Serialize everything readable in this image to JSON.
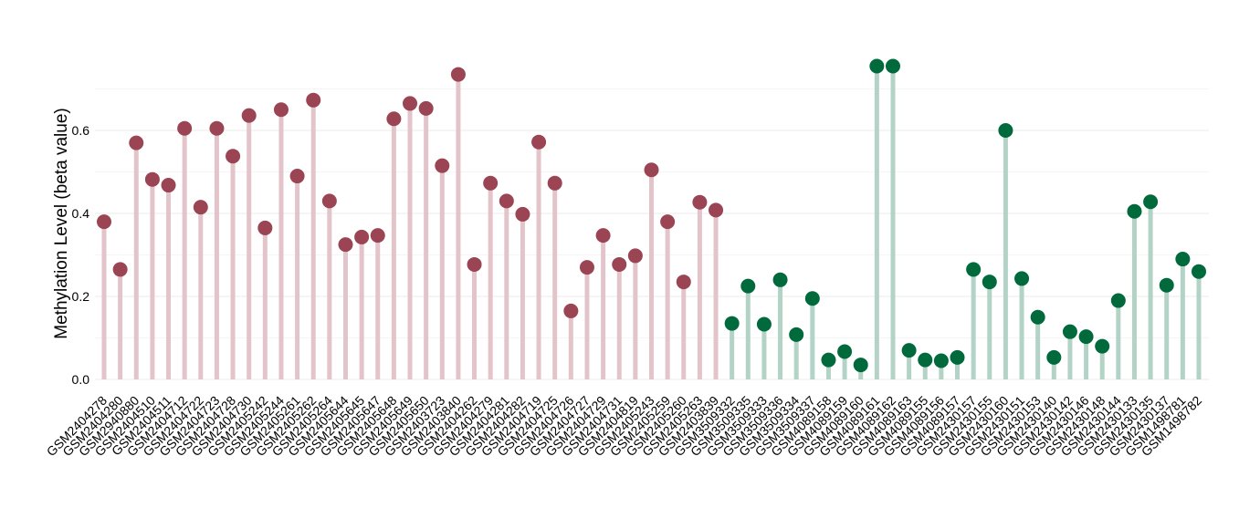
{
  "chart_data": {
    "type": "lollipop",
    "ylabel": "Methylation Level (beta value)",
    "ylim": [
      0,
      0.8
    ],
    "yticks": [
      "0.0",
      "0.2",
      "0.4",
      "0.6"
    ],
    "grid": true,
    "colors": {
      "group1_dot": "#9B4453",
      "group1_stem": "#E2C4CA",
      "group2_dot": "#006A3C",
      "group2_stem": "#B2D3C6"
    },
    "points": [
      {
        "label": "GSM2404278",
        "value": 0.38,
        "group": 1
      },
      {
        "label": "GSM2404280",
        "value": 0.265,
        "group": 1
      },
      {
        "label": "GSM2940880",
        "value": 0.57,
        "group": 1
      },
      {
        "label": "GSM2404510",
        "value": 0.482,
        "group": 1
      },
      {
        "label": "GSM2404511",
        "value": 0.468,
        "group": 1
      },
      {
        "label": "GSM2404712",
        "value": 0.605,
        "group": 1
      },
      {
        "label": "GSM2404722",
        "value": 0.415,
        "group": 1
      },
      {
        "label": "GSM2404723",
        "value": 0.605,
        "group": 1
      },
      {
        "label": "GSM2404728",
        "value": 0.538,
        "group": 1
      },
      {
        "label": "GSM2404730",
        "value": 0.636,
        "group": 1
      },
      {
        "label": "GSM2405242",
        "value": 0.365,
        "group": 1
      },
      {
        "label": "GSM2405244",
        "value": 0.65,
        "group": 1
      },
      {
        "label": "GSM2405261",
        "value": 0.49,
        "group": 1
      },
      {
        "label": "GSM2405262",
        "value": 0.673,
        "group": 1
      },
      {
        "label": "GSM2405264",
        "value": 0.43,
        "group": 1
      },
      {
        "label": "GSM2405644",
        "value": 0.325,
        "group": 1
      },
      {
        "label": "GSM2405645",
        "value": 0.343,
        "group": 1
      },
      {
        "label": "GSM2405647",
        "value": 0.347,
        "group": 1
      },
      {
        "label": "GSM2405648",
        "value": 0.628,
        "group": 1
      },
      {
        "label": "GSM2405649",
        "value": 0.665,
        "group": 1
      },
      {
        "label": "GSM2405650",
        "value": 0.653,
        "group": 1
      },
      {
        "label": "GSM2403723",
        "value": 0.515,
        "group": 1
      },
      {
        "label": "GSM2403840",
        "value": 0.735,
        "group": 1
      },
      {
        "label": "GSM2404262",
        "value": 0.277,
        "group": 1
      },
      {
        "label": "GSM2404279",
        "value": 0.473,
        "group": 1
      },
      {
        "label": "GSM2404281",
        "value": 0.43,
        "group": 1
      },
      {
        "label": "GSM2404282",
        "value": 0.398,
        "group": 1
      },
      {
        "label": "GSM2404719",
        "value": 0.572,
        "group": 1
      },
      {
        "label": "GSM2404725",
        "value": 0.473,
        "group": 1
      },
      {
        "label": "GSM2404726",
        "value": 0.165,
        "group": 1
      },
      {
        "label": "GSM2404727",
        "value": 0.27,
        "group": 1
      },
      {
        "label": "GSM2404729",
        "value": 0.347,
        "group": 1
      },
      {
        "label": "GSM2404731",
        "value": 0.277,
        "group": 1
      },
      {
        "label": "GSM2404819",
        "value": 0.298,
        "group": 1
      },
      {
        "label": "GSM2405243",
        "value": 0.505,
        "group": 1
      },
      {
        "label": "GSM2405259",
        "value": 0.38,
        "group": 1
      },
      {
        "label": "GSM2405260",
        "value": 0.235,
        "group": 1
      },
      {
        "label": "GSM2405263",
        "value": 0.427,
        "group": 1
      },
      {
        "label": "GSM2403839",
        "value": 0.408,
        "group": 1
      },
      {
        "label": "GSM3509332",
        "value": 0.135,
        "group": 2
      },
      {
        "label": "GSM3509335",
        "value": 0.225,
        "group": 2
      },
      {
        "label": "GSM3509333",
        "value": 0.133,
        "group": 2
      },
      {
        "label": "GSM3509336",
        "value": 0.24,
        "group": 2
      },
      {
        "label": "GSM3509334",
        "value": 0.108,
        "group": 2
      },
      {
        "label": "GSM3509337",
        "value": 0.195,
        "group": 2
      },
      {
        "label": "GSM4089158",
        "value": 0.047,
        "group": 2
      },
      {
        "label": "GSM4089159",
        "value": 0.067,
        "group": 2
      },
      {
        "label": "GSM4089160",
        "value": 0.035,
        "group": 2
      },
      {
        "label": "GSM4089161",
        "value": 0.755,
        "group": 2
      },
      {
        "label": "GSM4089162",
        "value": 0.755,
        "group": 2
      },
      {
        "label": "GSM4089163",
        "value": 0.07,
        "group": 2
      },
      {
        "label": "GSM4089155",
        "value": 0.047,
        "group": 2
      },
      {
        "label": "GSM4089156",
        "value": 0.045,
        "group": 2
      },
      {
        "label": "GSM4089157",
        "value": 0.053,
        "group": 2
      },
      {
        "label": "GSM2430157",
        "value": 0.265,
        "group": 2
      },
      {
        "label": "GSM2430155",
        "value": 0.235,
        "group": 2
      },
      {
        "label": "GSM2430160",
        "value": 0.6,
        "group": 2
      },
      {
        "label": "GSM2430151",
        "value": 0.243,
        "group": 2
      },
      {
        "label": "GSM2430153",
        "value": 0.15,
        "group": 2
      },
      {
        "label": "GSM2430140",
        "value": 0.053,
        "group": 2
      },
      {
        "label": "GSM2430142",
        "value": 0.115,
        "group": 2
      },
      {
        "label": "GSM2430146",
        "value": 0.103,
        "group": 2
      },
      {
        "label": "GSM2430148",
        "value": 0.08,
        "group": 2
      },
      {
        "label": "GSM2430144",
        "value": 0.19,
        "group": 2
      },
      {
        "label": "GSM2430133",
        "value": 0.405,
        "group": 2
      },
      {
        "label": "GSM2430135",
        "value": 0.428,
        "group": 2
      },
      {
        "label": "GSM2430137",
        "value": 0.227,
        "group": 2
      },
      {
        "label": "GSM1498781",
        "value": 0.29,
        "group": 2
      },
      {
        "label": "GSM1498782",
        "value": 0.26,
        "group": 2
      }
    ]
  }
}
